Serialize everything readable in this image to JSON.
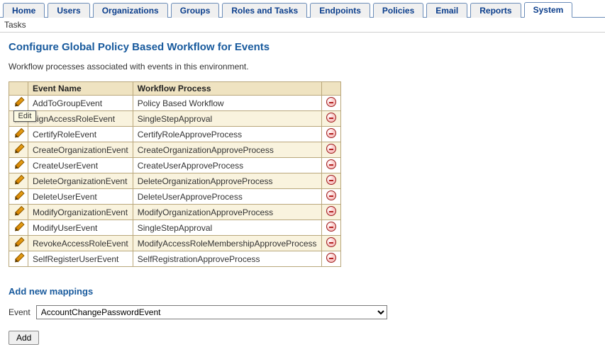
{
  "tabs": {
    "items": [
      {
        "label": "Home",
        "active": false
      },
      {
        "label": "Users",
        "active": false
      },
      {
        "label": "Organizations",
        "active": false
      },
      {
        "label": "Groups",
        "active": false
      },
      {
        "label": "Roles and Tasks",
        "active": false
      },
      {
        "label": "Endpoints",
        "active": false
      },
      {
        "label": "Policies",
        "active": false
      },
      {
        "label": "Email",
        "active": false
      },
      {
        "label": "Reports",
        "active": false
      },
      {
        "label": "System",
        "active": true
      }
    ]
  },
  "subbar": {
    "label": "Tasks"
  },
  "page": {
    "title": "Configure Global Policy Based Workflow for Events",
    "intro": "Workflow processes associated with events in this environment."
  },
  "table": {
    "headers": {
      "event": "Event Name",
      "process": "Workflow Process"
    },
    "rows": [
      {
        "event": "AddToGroupEvent",
        "process": "Policy Based Workflow"
      },
      {
        "event": "signAccessRoleEvent",
        "process": "SingleStepApproval"
      },
      {
        "event": "CertifyRoleEvent",
        "process": "CertifyRoleApproveProcess"
      },
      {
        "event": "CreateOrganizationEvent",
        "process": "CreateOrganizationApproveProcess"
      },
      {
        "event": "CreateUserEvent",
        "process": "CreateUserApproveProcess"
      },
      {
        "event": "DeleteOrganizationEvent",
        "process": "DeleteOrganizationApproveProcess"
      },
      {
        "event": "DeleteUserEvent",
        "process": "DeleteUserApproveProcess"
      },
      {
        "event": "ModifyOrganizationEvent",
        "process": "ModifyOrganizationApproveProcess"
      },
      {
        "event": "ModifyUserEvent",
        "process": "SingleStepApproval"
      },
      {
        "event": "RevokeAccessRoleEvent",
        "process": "ModifyAccessRoleMembershipApproveProcess"
      },
      {
        "event": "SelfRegisterUserEvent",
        "process": "SelfRegistrationApproveProcess"
      }
    ]
  },
  "tooltip": {
    "edit": "Edit",
    "row_index": 1
  },
  "add_section": {
    "title": "Add new mappings",
    "field_label": "Event",
    "selected": "AccountChangePasswordEvent",
    "button": "Add"
  },
  "colors": {
    "accent": "#185a9d",
    "tab_border": "#6a8cb8",
    "header_bg": "#efe3c1",
    "row_alt_bg": "#f9f3de",
    "cell_border": "#b9a77b"
  }
}
